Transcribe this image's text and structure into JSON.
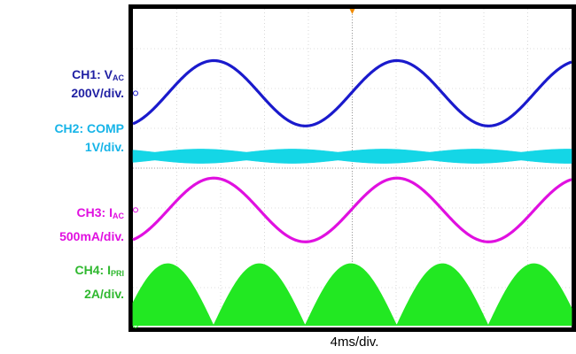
{
  "labels": [
    {
      "prefix": "CH1: V",
      "sub": "AC",
      "scale": "200V/div.",
      "color": "#1f1fa3"
    },
    {
      "prefix": "CH2: COMP",
      "sub": "",
      "scale": "1V/div.",
      "color": "#16b4e8"
    },
    {
      "prefix": "CH3: I",
      "sub": "AC",
      "scale": "500mA/div.",
      "color": "#e010e0"
    },
    {
      "prefix": "CH4: I",
      "sub": "PRI",
      "scale": "2A/div.",
      "color": "#2fb82f"
    }
  ],
  "timebase": "4ms/div.",
  "chart_data": {
    "type": "line",
    "x_divisions": 10,
    "y_divisions": 8,
    "x_unit": "ms",
    "x_per_div": 4,
    "xlim": [
      0,
      40
    ],
    "grid": true,
    "series": [
      {
        "name": "CH1: VAC",
        "color": "#1a1acc",
        "kind": "sine",
        "period_ms": 16.7,
        "phase_ms": 3.2,
        "center_div": 5.88,
        "amp_div": 0.82
      },
      {
        "name": "CH2: COMP",
        "color": "#14d6e6",
        "kind": "ripple",
        "period_ms": 8.35,
        "phase_ms": 2.0,
        "center_div": 4.3,
        "amp_div": 0.18
      },
      {
        "name": "CH3: IAC",
        "color": "#e010e0",
        "kind": "sine",
        "period_ms": 16.7,
        "phase_ms": 3.2,
        "center_div": 2.95,
        "amp_div": 0.8
      },
      {
        "name": "CH4: IPRI",
        "color": "#22e822",
        "kind": "rectified",
        "period_ms": 8.35,
        "phase_ms": -1.0,
        "base_div": 0.05,
        "amp_div": 1.55
      }
    ]
  }
}
